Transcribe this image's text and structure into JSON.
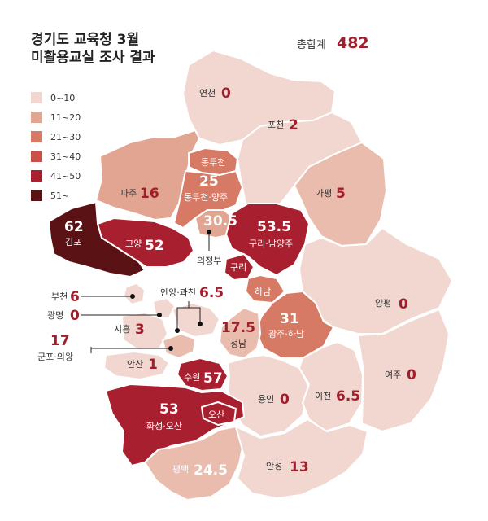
{
  "title_line1": "경기도 교육청 3월",
  "title_line2": "미활용교실 조사 결과",
  "total_label": "총합계",
  "total_value": "482",
  "legend": [
    {
      "label": "0~10",
      "color": "#f1d7d0"
    },
    {
      "label": "11~20",
      "color": "#e2a592"
    },
    {
      "label": "21~30",
      "color": "#d67a66"
    },
    {
      "label": "31~40",
      "color": "#c95048"
    },
    {
      "label": "41~50",
      "color": "#a8202f"
    },
    {
      "label": "51~",
      "color": "#5a1215"
    }
  ],
  "regions": {
    "yeoncheon": {
      "name": "연천",
      "value": "0"
    },
    "pocheon": {
      "name": "포천",
      "value": "2"
    },
    "gapyeong": {
      "name": "가평",
      "value": "5"
    },
    "paju": {
      "name": "파주",
      "value": "16"
    },
    "dongducheon": {
      "name": "동두천"
    },
    "dongducheon_yangju": {
      "name": "동두천·양주",
      "value": "25"
    },
    "gimpo": {
      "name": "김포",
      "value": "62"
    },
    "goyang": {
      "name": "고양",
      "value": "52"
    },
    "uijeongbu": {
      "name": "의정부",
      "value": "30.5"
    },
    "guri_namyangju": {
      "name": "구리·남양주",
      "value": "53.5"
    },
    "guri": {
      "name": "구리"
    },
    "hanam": {
      "name": "하남"
    },
    "yangpyeong": {
      "name": "양평",
      "value": "0"
    },
    "bucheon": {
      "name": "부천",
      "value": "6"
    },
    "gwangmyeong": {
      "name": "광명",
      "value": "0"
    },
    "anyang_gwacheon": {
      "name": "안양·과천",
      "value": "6.5"
    },
    "siheung": {
      "name": "시흥",
      "value": "3"
    },
    "seongnam": {
      "name": "성남",
      "value": "17.5"
    },
    "gwangju_hanam": {
      "name": "광주·하남",
      "value": "31"
    },
    "gunpo_uiwang": {
      "name": "군포·의왕",
      "value": "17"
    },
    "ansan": {
      "name": "안산",
      "value": "1"
    },
    "suwon": {
      "name": "수원",
      "value": "57"
    },
    "yeoju": {
      "name": "여주",
      "value": "0"
    },
    "yongin": {
      "name": "용인",
      "value": "0"
    },
    "icheon": {
      "name": "이천",
      "value": "6.5"
    },
    "hwaseong_osan": {
      "name": "화성·오산",
      "value": "53"
    },
    "osan": {
      "name": "오산"
    },
    "pyeongtaek": {
      "name": "평택",
      "value": "24.5"
    },
    "anseong": {
      "name": "안성",
      "value": "13"
    }
  }
}
